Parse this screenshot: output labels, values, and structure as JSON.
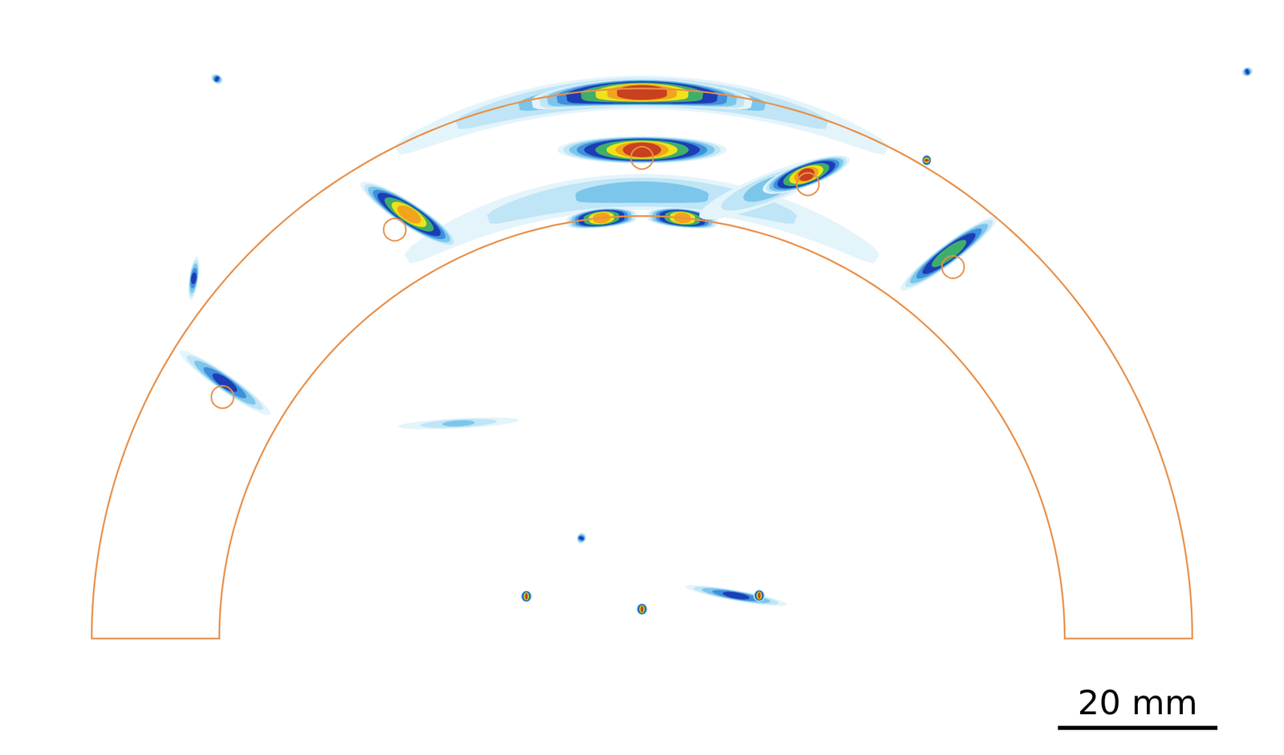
{
  "chart_data": {
    "type": "image",
    "xlim": [
      -80.5,
      80.5
    ],
    "ylim": [
      -14.6,
      80.1
    ],
    "tick_labels": false,
    "part": {
      "outer_radius": 69,
      "inner_radius": 53,
      "color": "#e8904a"
    },
    "defects": [
      {
        "x": 0,
        "y": 60.3,
        "r": 1.4
      },
      {
        "x": 20.8,
        "y": 57.0,
        "r": 1.4
      },
      {
        "x": -31.0,
        "y": 51.3,
        "r": 1.4
      },
      {
        "x": 39.0,
        "y": 46.6,
        "r": 1.4
      },
      {
        "x": -52.6,
        "y": 30.3,
        "r": 1.4
      }
    ],
    "indications": [
      {
        "shape": "arc",
        "radius": 68.5,
        "angle": 90,
        "span": 60,
        "width": 4.5,
        "amplitude": 0.3
      },
      {
        "shape": "arc",
        "radius": 68.5,
        "angle": 90,
        "span": 24,
        "width": 3.5,
        "amplitude": 1.0
      },
      {
        "shape": "arc",
        "radius": 56,
        "angle": 90,
        "span": 75,
        "width": 5,
        "amplitude": 0.22
      },
      {
        "shape": "arc",
        "radius": 53,
        "angle": 95.5,
        "span": 10,
        "width": 2.5,
        "amplitude": 0.9
      },
      {
        "shape": "arc",
        "radius": 53,
        "angle": 84.5,
        "span": 10,
        "width": 2.5,
        "amplitude": 0.9
      },
      {
        "shape": "spot",
        "x": 0,
        "y": 61.3,
        "length": 22,
        "width": 3.5,
        "angle": 0,
        "amplitude": 1.0
      },
      {
        "shape": "spot",
        "x": 16,
        "y": 56.5,
        "length": 22,
        "width": 4,
        "angle": 22,
        "amplitude": 0.25
      },
      {
        "shape": "spot",
        "x": 20.6,
        "y": 58.2,
        "length": 12,
        "width": 3,
        "angle": 20,
        "amplitude": 0.95
      },
      {
        "shape": "spot",
        "x": -29.2,
        "y": 53.2,
        "length": 15,
        "width": 3,
        "angle": -33,
        "amplitude": 0.9
      },
      {
        "shape": "spot",
        "x": 38.5,
        "y": 48.3,
        "length": 16,
        "width": 2.5,
        "angle": 37,
        "amplitude": 0.7
      },
      {
        "shape": "spot",
        "x": -52.3,
        "y": 32.1,
        "length": 15,
        "width": 2.2,
        "angle": -35,
        "amplitude": 0.45
      },
      {
        "shape": "spot",
        "x": -56.2,
        "y": 45.2,
        "length": 6,
        "width": 1.2,
        "angle": 82,
        "amplitude": 0.45
      },
      {
        "shape": "spot",
        "x": 11.8,
        "y": 5.4,
        "length": 14,
        "width": 1.4,
        "angle": -10,
        "amplitude": 0.45
      },
      {
        "shape": "spot",
        "x": -23,
        "y": 27,
        "length": 18,
        "width": 1.4,
        "angle": 3,
        "amplitude": 0.22
      },
      {
        "shape": "spot",
        "x": -14.5,
        "y": 5.3,
        "length": 1.5,
        "width": 1.5,
        "angle": 0,
        "amplitude": 1.0
      },
      {
        "shape": "spot",
        "x": 0,
        "y": 3.7,
        "length": 1.5,
        "width": 1.5,
        "angle": 0,
        "amplitude": 1.0
      },
      {
        "shape": "spot",
        "x": 14.7,
        "y": 5.4,
        "length": 1.5,
        "width": 1.5,
        "angle": 0,
        "amplitude": 1.0
      },
      {
        "shape": "spot",
        "x": 35.7,
        "y": 60.0,
        "length": 1.5,
        "width": 1.2,
        "angle": 90,
        "amplitude": 1.0
      },
      {
        "shape": "spot",
        "x": -53.3,
        "y": 70.2,
        "length": 1.8,
        "width": 1.2,
        "angle": -30,
        "amplitude": 0.45
      },
      {
        "shape": "spot",
        "x": 75.9,
        "y": 71.1,
        "length": 1.6,
        "width": 1.2,
        "angle": 20,
        "amplitude": 0.45
      },
      {
        "shape": "spot",
        "x": -7.6,
        "y": 12.6,
        "length": 1.6,
        "width": 1.2,
        "angle": 70,
        "amplitude": 0.45
      }
    ],
    "scale_bar": {
      "label": "20 mm",
      "length": 20
    }
  }
}
